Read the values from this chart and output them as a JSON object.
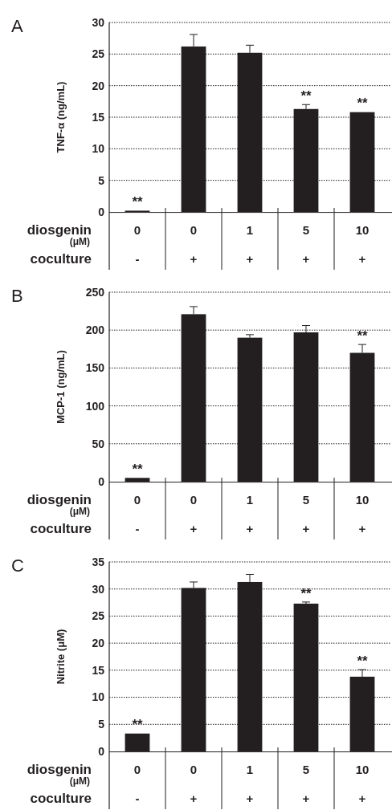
{
  "chart_data": [
    {
      "type": "bar",
      "title": "A",
      "ylabel": "TNF-α (ng/mL)",
      "categories": [
        "0\n-",
        "0\n+",
        "1\n+",
        "5\n+",
        "10\n+"
      ],
      "values": [
        0.2,
        26.2,
        25.2,
        16.3,
        15.8
      ],
      "errors": [
        null,
        1.9,
        1.2,
        0.7,
        null
      ],
      "color": "#231f20",
      "ylim": [
        0,
        30
      ],
      "yticks": [
        0,
        5,
        10,
        15,
        20,
        25,
        30
      ],
      "grid": "y",
      "annotations": [
        "diosgenin",
        "(μM)",
        "coculture",
        {
          "text": "**",
          "x": "0\n-",
          "y": 0.2
        },
        {
          "text": "**",
          "x": "5\n+",
          "y": 17
        },
        {
          "text": "**",
          "x": "10\n+",
          "y": 15.95
        }
      ]
    },
    {
      "type": "bar",
      "title": "B",
      "ylabel": "MCP-1 (ng/mL)",
      "categories": [
        "0\n-",
        "0\n+",
        "1\n+",
        "5\n+",
        "10\n+"
      ],
      "values": [
        5,
        221,
        190,
        197,
        170
      ],
      "errors": [
        null,
        10,
        4,
        9,
        11
      ],
      "color": "#231f20",
      "ylim": [
        0,
        250
      ],
      "yticks": [
        0,
        50,
        100,
        150,
        200,
        250
      ],
      "grid": "y",
      "annotations": [
        "diosgenin",
        "(μM)",
        "coculture",
        {
          "text": "**",
          "x": "0\n-",
          "y": 5
        },
        {
          "text": "**",
          "x": "10\n+",
          "y": 181
        }
      ]
    },
    {
      "type": "bar",
      "title": "C",
      "ylabel": "Nitrite  (μM)",
      "categories": [
        "0\n-",
        "0\n+",
        "1\n+",
        "5\n+",
        "10\n+"
      ],
      "values": [
        3.3,
        30.2,
        31.3,
        27.3,
        13.8
      ],
      "errors": [
        null,
        1.1,
        1.4,
        0.3,
        1.3
      ],
      "color": "#231f20",
      "ylim": [
        0,
        35
      ],
      "yticks": [
        0,
        5,
        10,
        15,
        20,
        25,
        30,
        35
      ],
      "grid": "y",
      "annotations": [
        "diosgenin",
        "(μM)",
        "coculture",
        {
          "text": "**",
          "x": "0\n-",
          "y": 3.4
        },
        {
          "text": "**",
          "x": "5\n+",
          "y": 27.6
        },
        {
          "text": "**",
          "x": "10\n+",
          "y": 15.1
        }
      ]
    }
  ]
}
